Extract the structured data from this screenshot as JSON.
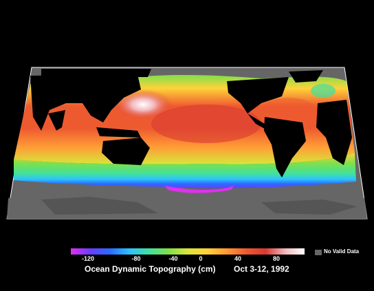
{
  "legend": {
    "ticks": [
      "-120",
      "-80",
      "-40",
      "0",
      "40",
      "80"
    ],
    "no_data_label": "No Valid Data",
    "no_data_color": "#666666",
    "colors": [
      "#e030f0",
      "#6a3cff",
      "#2a6bff",
      "#2ec2ff",
      "#3fe0a0",
      "#7ee04a",
      "#d8e63a",
      "#ffd23a",
      "#ff9a36",
      "#ee5a30",
      "#d83a32",
      "#f2b8bd",
      "#ffffff"
    ]
  },
  "caption": {
    "title": "Ocean Dynamic Topography  (cm)",
    "date": "Oct 3-12, 1992"
  },
  "map": {
    "background": "#000000",
    "land_color": "#000000",
    "grid_color": "#ffffff"
  }
}
